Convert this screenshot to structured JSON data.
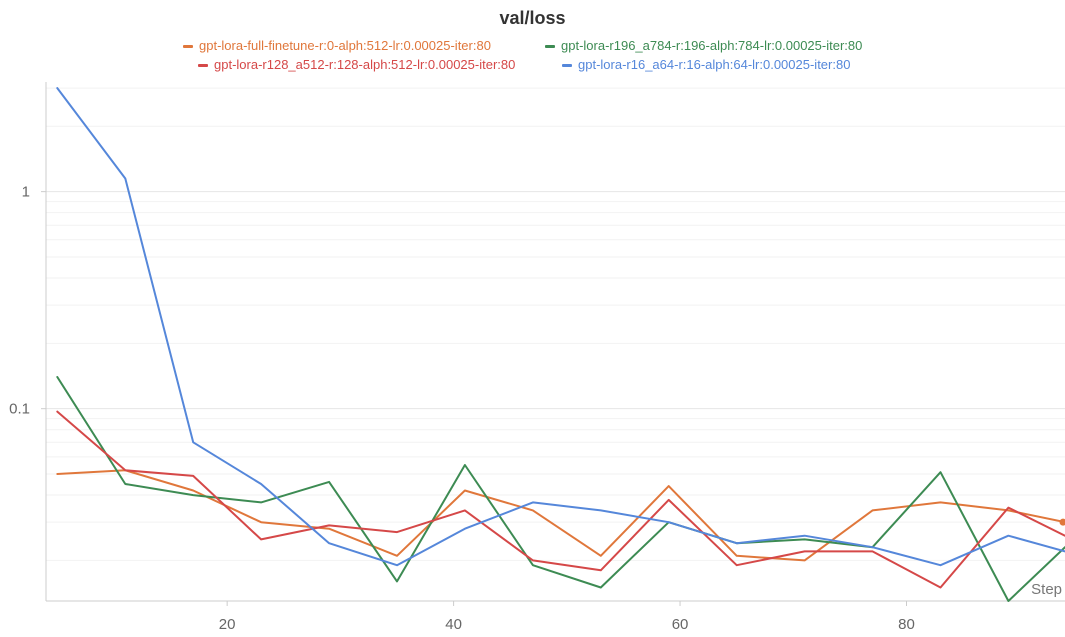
{
  "chart_data": {
    "type": "line",
    "title": "val/loss",
    "xlabel": "Step",
    "ylabel": "",
    "y_scale": "log",
    "xlim": [
      4,
      94
    ],
    "ylim": [
      0.013,
      3.2
    ],
    "x_ticks": [
      20,
      40,
      60,
      80
    ],
    "y_ticks": [
      {
        "value": 0.1,
        "label": "0.1"
      },
      {
        "value": 1,
        "label": "1"
      }
    ],
    "grid": true,
    "legend_position": "top",
    "x": [
      5,
      11,
      17,
      23,
      29,
      35,
      41,
      47,
      53,
      59,
      65,
      71,
      77,
      83,
      89,
      94
    ],
    "series": [
      {
        "name": "gpt-lora-full-finetune-r:0-alph:512-lr:0.00025-iter:80",
        "color": "#e0773b",
        "values": [
          0.05,
          0.052,
          0.042,
          0.03,
          0.028,
          0.021,
          0.042,
          0.034,
          0.021,
          0.044,
          0.021,
          0.02,
          0.034,
          0.037,
          0.034,
          0.03
        ]
      },
      {
        "name": "gpt-lora-r196_a784-r:196-alph:784-lr:0.00025-iter:80",
        "color": "#3d8b53",
        "values": [
          0.14,
          0.045,
          0.04,
          0.037,
          0.046,
          0.016,
          0.055,
          0.019,
          0.015,
          0.03,
          0.024,
          0.025,
          0.023,
          0.051,
          0.013,
          0.023
        ]
      },
      {
        "name": "gpt-lora-r128_a512-r:128-alph:512-lr:0.00025-iter:80",
        "color": "#d54848",
        "values": [
          0.097,
          0.052,
          0.049,
          0.025,
          0.029,
          0.027,
          0.034,
          0.02,
          0.018,
          0.038,
          0.019,
          0.022,
          0.022,
          0.015,
          0.035,
          0.026
        ]
      },
      {
        "name": "gpt-lora-r16_a64-r:16-alph:64-lr:0.00025-iter:80",
        "color": "#5587da",
        "values": [
          3.0,
          1.15,
          0.07,
          0.045,
          0.024,
          0.019,
          0.028,
          0.037,
          0.034,
          0.03,
          0.024,
          0.026,
          0.023,
          0.019,
          0.026,
          0.022
        ]
      }
    ]
  }
}
